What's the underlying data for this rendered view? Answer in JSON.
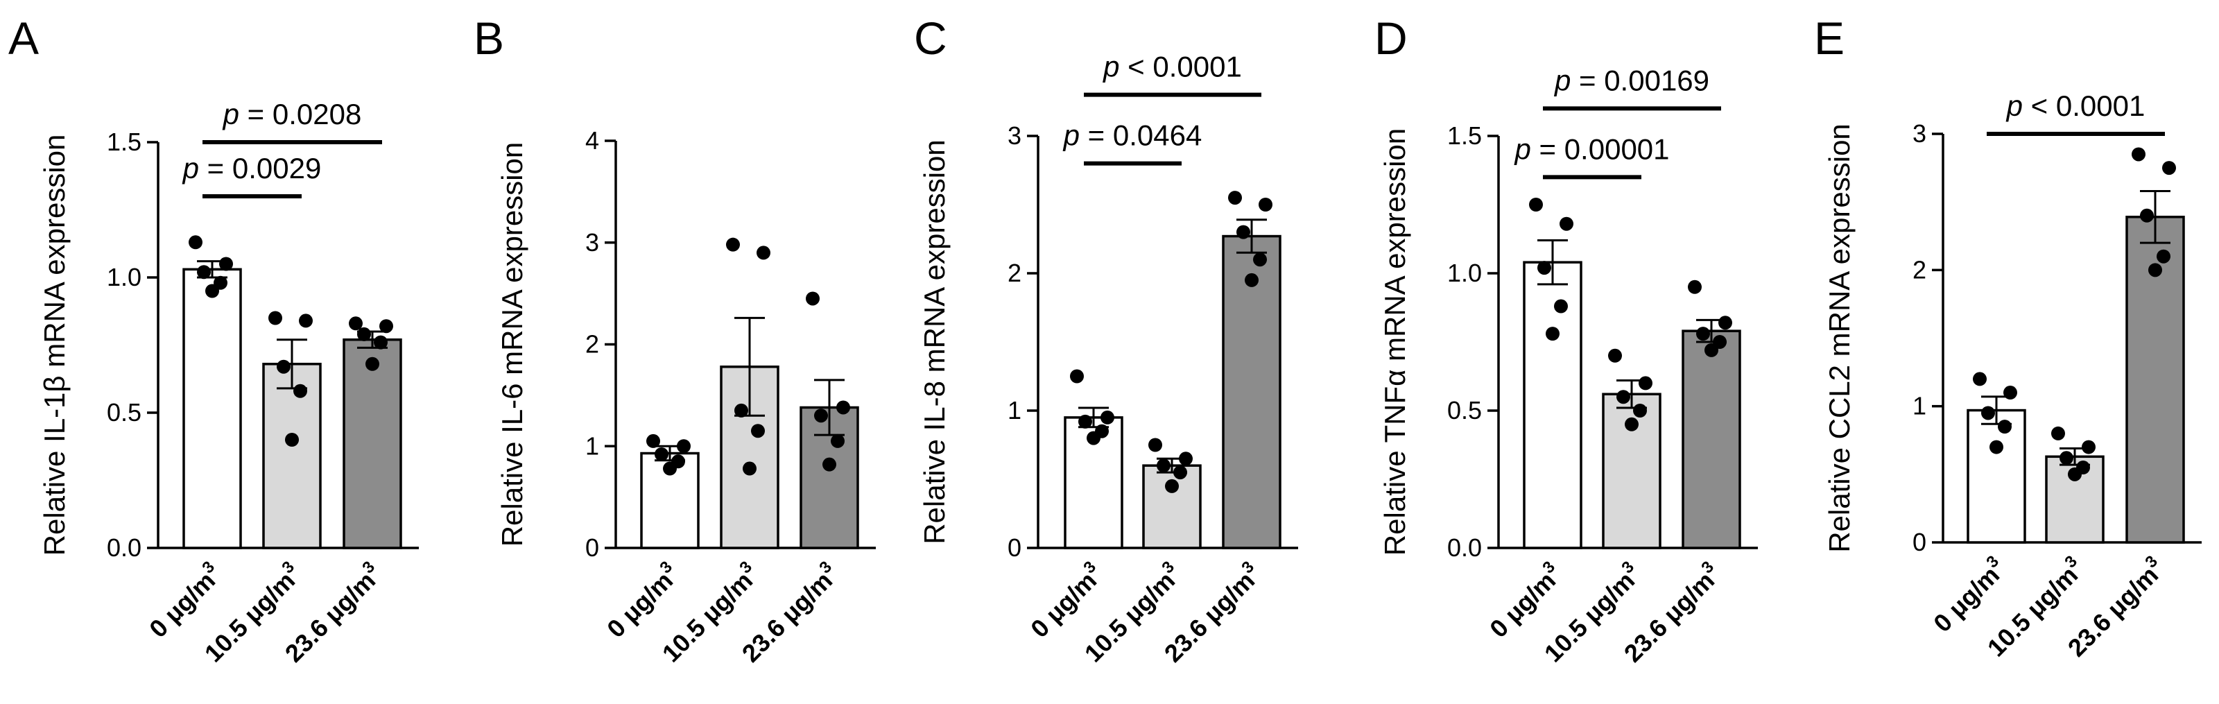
{
  "chart_data": [
    {
      "panel": "A",
      "type": "bar",
      "ylabel": "Relative IL-1β mRNA expression",
      "ylim": [
        0,
        1.5
      ],
      "yticks": [
        0.0,
        0.5,
        1.0,
        1.5
      ],
      "ytick_labels": [
        "0.0",
        "0.5",
        "1.0",
        "1.5"
      ],
      "categories": [
        "0 μg/m3",
        "10.5 μg/m3",
        "23.6 μg/m3"
      ],
      "values": [
        1.03,
        0.68,
        0.77
      ],
      "sem": [
        0.03,
        0.09,
        0.03
      ],
      "points": [
        [
          1.13,
          1.05,
          1.02,
          0.98,
          0.95
        ],
        [
          0.85,
          0.84,
          0.67,
          0.58,
          0.4
        ],
        [
          0.83,
          0.82,
          0.79,
          0.76,
          0.68
        ]
      ],
      "bar_colors": [
        "#ffffff",
        "#d9d9d9",
        "#8c8c8c"
      ],
      "comparisons": [
        {
          "label_prefix": "p",
          "label_rest": " = 0.0029",
          "from": 0,
          "to": 1,
          "y": 1.3
        },
        {
          "label_prefix": "p",
          "label_rest": " = 0.0208",
          "from": 0,
          "to": 2,
          "y": 1.5
        }
      ]
    },
    {
      "panel": "B",
      "type": "bar",
      "ylabel": "Relative IL-6 mRNA expression",
      "ylim": [
        0,
        4
      ],
      "yticks": [
        0,
        1,
        2,
        3,
        4
      ],
      "ytick_labels": [
        "0",
        "1",
        "2",
        "3",
        "4"
      ],
      "categories": [
        "0 μg/m3",
        "10.5 μg/m3",
        "23.6 μg/m3"
      ],
      "values": [
        0.93,
        1.78,
        1.38
      ],
      "sem": [
        0.07,
        0.48,
        0.27
      ],
      "points": [
        [
          1.05,
          1.0,
          0.92,
          0.85,
          0.78
        ],
        [
          2.98,
          2.9,
          1.35,
          1.15,
          0.78
        ],
        [
          2.45,
          1.38,
          1.3,
          1.05,
          0.82
        ]
      ],
      "bar_colors": [
        "#ffffff",
        "#d9d9d9",
        "#8c8c8c"
      ],
      "comparisons": []
    },
    {
      "panel": "C",
      "type": "bar",
      "ylabel": "Relative IL-8 mRNA expression",
      "ylim": [
        0,
        3
      ],
      "yticks": [
        0,
        1,
        2,
        3
      ],
      "ytick_labels": [
        "0",
        "1",
        "2",
        "3"
      ],
      "categories": [
        "0 μg/m3",
        "10.5 μg/m3",
        "23.6 μg/m3"
      ],
      "values": [
        0.95,
        0.6,
        2.27
      ],
      "sem": [
        0.07,
        0.05,
        0.12
      ],
      "points": [
        [
          1.25,
          0.95,
          0.92,
          0.85,
          0.8
        ],
        [
          0.75,
          0.65,
          0.6,
          0.55,
          0.45
        ],
        [
          2.55,
          2.5,
          2.3,
          2.1,
          1.95
        ]
      ],
      "bar_colors": [
        "#ffffff",
        "#d9d9d9",
        "#8c8c8c"
      ],
      "comparisons": [
        {
          "label_prefix": "p",
          "label_rest": " = 0.0464",
          "from": 0,
          "to": 1,
          "y": 2.8
        },
        {
          "label_prefix": "p",
          "label_rest": " < 0.0001",
          "from": 0,
          "to": 2,
          "y": 3.3
        }
      ]
    },
    {
      "panel": "D",
      "type": "bar",
      "ylabel": "Relative TNFα mRNA expression",
      "ylim": [
        0,
        1.5
      ],
      "yticks": [
        0.0,
        0.5,
        1.0,
        1.5
      ],
      "ytick_labels": [
        "0.0",
        "0.5",
        "1.0",
        "1.5"
      ],
      "categories": [
        "0 μg/m3",
        "10.5 μg/m3",
        "23.6 μg/m3"
      ],
      "values": [
        1.04,
        0.56,
        0.79
      ],
      "sem": [
        0.08,
        0.05,
        0.04
      ],
      "points": [
        [
          1.25,
          1.18,
          1.02,
          0.88,
          0.78
        ],
        [
          0.7,
          0.6,
          0.55,
          0.5,
          0.45
        ],
        [
          0.95,
          0.82,
          0.78,
          0.75,
          0.72
        ]
      ],
      "bar_colors": [
        "#ffffff",
        "#d9d9d9",
        "#8c8c8c"
      ],
      "comparisons": [
        {
          "label_prefix": "p",
          "label_rest": " = 0.00001",
          "from": 0,
          "to": 1,
          "y": 1.35
        },
        {
          "label_prefix": "p",
          "label_rest": " = 0.00169",
          "from": 0,
          "to": 2,
          "y": 1.6
        }
      ]
    },
    {
      "panel": "E",
      "type": "bar",
      "ylabel": "Relative CCL2 mRNA expression",
      "ylim": [
        0,
        3
      ],
      "yticks": [
        0,
        1,
        2,
        3
      ],
      "ytick_labels": [
        "0",
        "1",
        "2",
        "3"
      ],
      "categories": [
        "0 μg/m3",
        "10.5 μg/m3",
        "23.6 μg/m3"
      ],
      "values": [
        0.97,
        0.63,
        2.39
      ],
      "sem": [
        0.1,
        0.06,
        0.19
      ],
      "points": [
        [
          1.2,
          1.1,
          0.95,
          0.85,
          0.7
        ],
        [
          0.8,
          0.7,
          0.62,
          0.55,
          0.5
        ],
        [
          2.85,
          2.75,
          2.4,
          2.1,
          2.0
        ]
      ],
      "bar_colors": [
        "#ffffff",
        "#d9d9d9",
        "#8c8c8c"
      ],
      "comparisons": [
        {
          "label_prefix": "p",
          "label_rest": " < 0.0001",
          "from": 0,
          "to": 2,
          "y": 3.0
        }
      ]
    }
  ]
}
